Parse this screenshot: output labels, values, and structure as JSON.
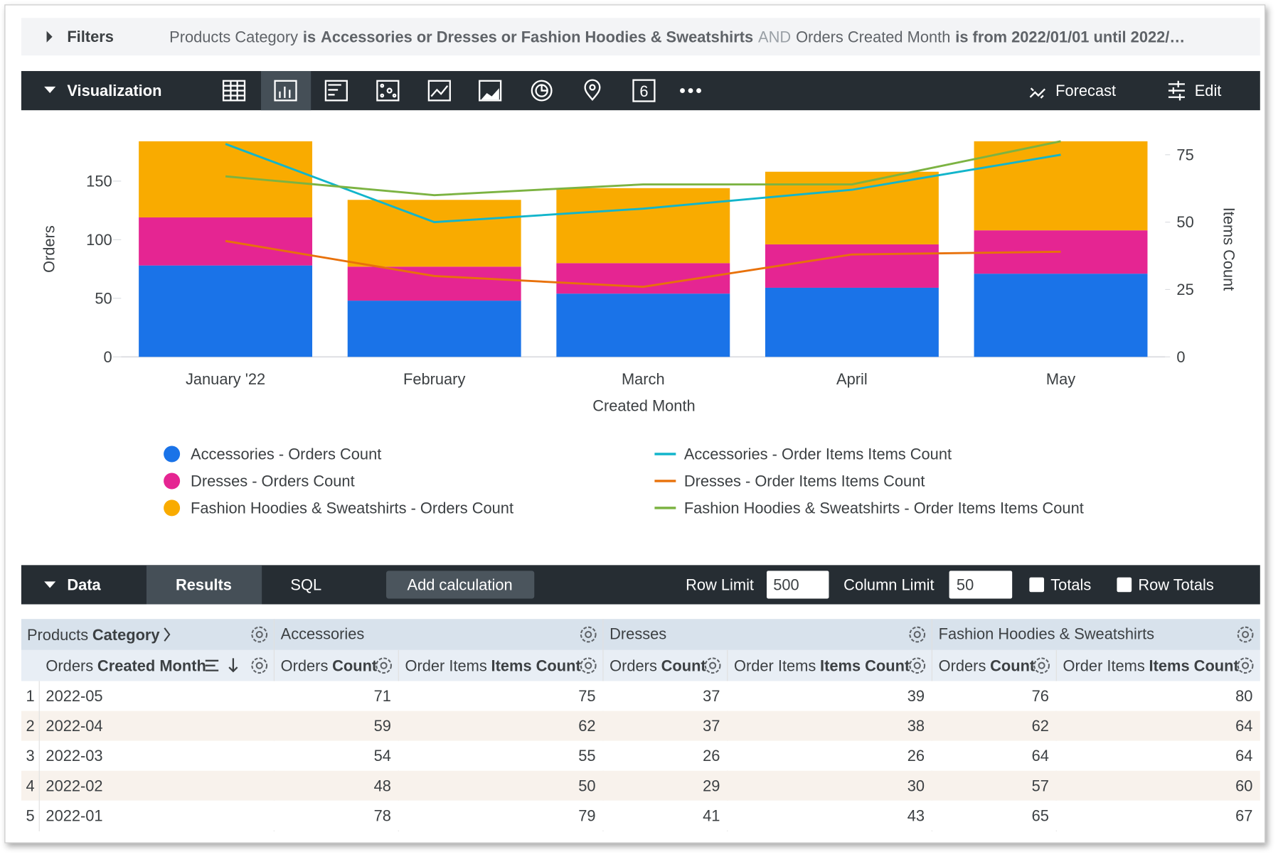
{
  "filters": {
    "label": "Filters",
    "expression": [
      "Products Category",
      "is",
      "Accessories or Dresses or Fashion Hoodies & Sweatshirts",
      "AND",
      "Orders Created Month",
      "is from 2022/01/01 until 2022/…"
    ]
  },
  "visualization_bar": {
    "label": "Visualization",
    "single_value_icon": "6",
    "forecast": "Forecast",
    "edit": "Edit"
  },
  "chart_data": {
    "type": "bar",
    "stacked": true,
    "categories": [
      "January '22",
      "February",
      "March",
      "April",
      "May"
    ],
    "x_label": "Created Month",
    "y_label": "Orders",
    "y2_label": "Items Count",
    "ylim": [
      0,
      184
    ],
    "yticks": [
      0,
      50,
      100,
      150
    ],
    "y2lim": [
      0,
      80
    ],
    "y2ticks": [
      0,
      25,
      50,
      75
    ],
    "series": [
      {
        "name": "Accessories - Orders Count",
        "type": "bar",
        "color": "#1a73e8",
        "values": [
          78,
          48,
          54,
          59,
          71
        ]
      },
      {
        "name": "Dresses - Orders Count",
        "type": "bar",
        "color": "#e52592",
        "values": [
          41,
          29,
          26,
          37,
          37
        ]
      },
      {
        "name": "Fashion Hoodies & Sweatshirts - Orders Count",
        "type": "bar",
        "color": "#f9ab00",
        "values": [
          65,
          57,
          64,
          62,
          76
        ]
      },
      {
        "name": "Accessories - Order Items Items Count",
        "type": "line",
        "axis": "y2",
        "color": "#12b5cb",
        "values": [
          79,
          50,
          55,
          62,
          75
        ]
      },
      {
        "name": "Dresses - Order Items Items Count",
        "type": "line",
        "axis": "y2",
        "color": "#e8710a",
        "values": [
          43,
          30,
          26,
          38,
          39
        ]
      },
      {
        "name": "Fashion Hoodies & Sweatshirts - Order Items Items Count",
        "type": "line",
        "axis": "y2",
        "color": "#7cb342",
        "values": [
          67,
          60,
          64,
          64,
          80
        ]
      }
    ]
  },
  "data_bar": {
    "label": "Data",
    "tabs": [
      "Results",
      "SQL"
    ],
    "add_calculation": "Add calculation",
    "row_limit_label": "Row Limit",
    "row_limit": 500,
    "column_limit_label": "Column Limit",
    "column_limit": 50,
    "totals": "Totals",
    "row_totals": "Row Totals"
  },
  "table": {
    "pivot_label": {
      "view": "Products",
      "field": "Category"
    },
    "pivots": [
      "Accessories",
      "Dresses",
      "Fashion Hoodies & Sweatshirts"
    ],
    "dimension": {
      "view": "Orders",
      "field": "Created Month"
    },
    "measures": [
      {
        "view": "Orders",
        "field": "Count"
      },
      {
        "view": "Order Items",
        "field": "Items Count"
      }
    ],
    "rows": [
      [
        1,
        "2022-05",
        71,
        75,
        37,
        39,
        76,
        80
      ],
      [
        2,
        "2022-04",
        59,
        62,
        37,
        38,
        62,
        64
      ],
      [
        3,
        "2022-03",
        54,
        55,
        26,
        26,
        64,
        64
      ],
      [
        4,
        "2022-02",
        48,
        50,
        29,
        30,
        57,
        60
      ],
      [
        5,
        "2022-01",
        78,
        79,
        41,
        43,
        65,
        67
      ]
    ]
  }
}
